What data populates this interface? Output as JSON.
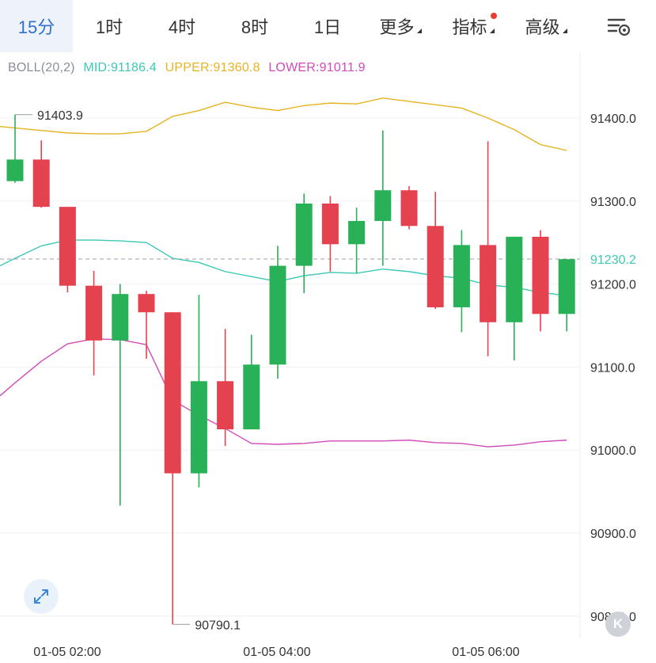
{
  "tabs": [
    {
      "label": "15分",
      "active": true
    },
    {
      "label": "1时"
    },
    {
      "label": "4时"
    },
    {
      "label": "8时"
    },
    {
      "label": "1日"
    },
    {
      "label": "更多",
      "dropdown": true
    },
    {
      "label": "指标",
      "dropdown": true,
      "badge": true
    },
    {
      "label": "高级",
      "dropdown": true
    }
  ],
  "settings_icon": "chart-settings-icon",
  "expand_icon": "expand-icon",
  "watermark_badge": "K",
  "indicator": {
    "name": "BOLL(20,2)",
    "mid": "MID:91186.4",
    "upper": "UPPER:91360.8",
    "lower": "LOWER:91011.9"
  },
  "colors": {
    "up": "#29b158",
    "down": "#e5424f",
    "mid": "#3cc9b4",
    "upper": "#e6b422",
    "lower": "#d24ab8",
    "active_tab": "#2f6fd1",
    "price_tag": "#3cc9b4",
    "badge_dot": "#e8402e"
  },
  "chart_data": {
    "type": "candlestick",
    "interval": "15分",
    "y_ticks": [
      "91400.0",
      "91300.0",
      "91200.0",
      "91100.0",
      "91000.0",
      "90900.0",
      "90800.0"
    ],
    "ylim": [
      90785,
      91465
    ],
    "x_ticks": [
      "01-05 02:00",
      "01-05 04:00",
      "01-05 06:00"
    ],
    "current_price": "91230.2",
    "max_label": "91403.9",
    "min_label": "90790.1",
    "candles": [
      {
        "o": 91324,
        "h": 91404,
        "l": 91322,
        "c": 91350
      },
      {
        "o": 91350,
        "h": 91373,
        "l": 91292,
        "c": 91293
      },
      {
        "o": 91293,
        "h": 91293,
        "l": 91190,
        "c": 91198
      },
      {
        "o": 91198,
        "h": 91216,
        "l": 91090,
        "c": 91132
      },
      {
        "o": 91132,
        "h": 91200,
        "l": 90933,
        "c": 91188
      },
      {
        "o": 91188,
        "h": 91192,
        "l": 91110,
        "c": 91166
      },
      {
        "o": 91166,
        "h": 91166,
        "l": 90790,
        "c": 90972
      },
      {
        "o": 90972,
        "h": 91187,
        "l": 90955,
        "c": 91083
      },
      {
        "o": 91083,
        "h": 91146,
        "l": 91005,
        "c": 91025
      },
      {
        "o": 91025,
        "h": 91139,
        "l": 91025,
        "c": 91103
      },
      {
        "o": 91103,
        "h": 91246,
        "l": 91086,
        "c": 91222
      },
      {
        "o": 91222,
        "h": 91309,
        "l": 91189,
        "c": 91297
      },
      {
        "o": 91297,
        "h": 91306,
        "l": 91215,
        "c": 91248
      },
      {
        "o": 91248,
        "h": 91292,
        "l": 91213,
        "c": 91276
      },
      {
        "o": 91276,
        "h": 91385,
        "l": 91222,
        "c": 91313
      },
      {
        "o": 91313,
        "h": 91318,
        "l": 91266,
        "c": 91270
      },
      {
        "o": 91270,
        "h": 91311,
        "l": 91170,
        "c": 91172
      },
      {
        "o": 91172,
        "h": 91265,
        "l": 91142,
        "c": 91247
      },
      {
        "o": 91247,
        "h": 91372,
        "l": 91113,
        "c": 91154
      },
      {
        "o": 91154,
        "h": 91254,
        "l": 91108,
        "c": 91257
      },
      {
        "o": 91257,
        "h": 91265,
        "l": 91143,
        "c": 91164
      },
      {
        "o": 91164,
        "h": 91230,
        "l": 91143,
        "c": 91230
      }
    ],
    "upper": [
      91388,
      91385,
      91382,
      91381,
      91381,
      91384,
      91402,
      91409,
      91419,
      91413,
      91409,
      91415,
      91418,
      91417,
      91424,
      91420,
      91416,
      91412,
      91400,
      91386,
      91368,
      91361
    ],
    "mid": [
      91231,
      91246,
      91253,
      91253,
      91252,
      91250,
      91231,
      91226,
      91215,
      91209,
      91203,
      91210,
      91214,
      91213,
      91218,
      91215,
      91210,
      91207,
      91199,
      91196,
      91190,
      91186
    ],
    "lower": [
      91081,
      91107,
      91128,
      91134,
      91133,
      91127,
      91060,
      91042,
      91026,
      91008,
      91007,
      91008,
      91011,
      91011,
      91011,
      91012,
      91009,
      91008,
      91004,
      91006,
      91010,
      91012
    ]
  }
}
